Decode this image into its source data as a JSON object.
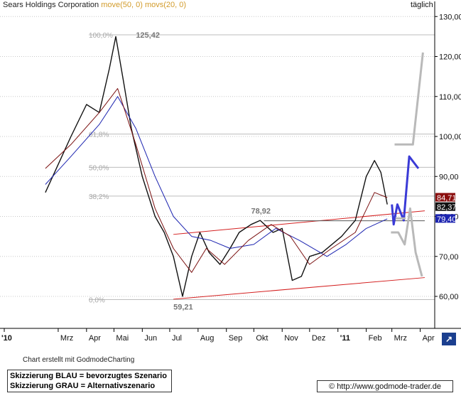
{
  "title": "Sears Holdings Corporation",
  "indicators": "move(50, 0) movs(20, 0)",
  "period": "täglich",
  "credit": "Chart erstellt mit GodmodeCharting",
  "legend": [
    "Skizzierung BLAU = bevorzugtes Szenario",
    "Skizzierung GRAU = Alternativszenario"
  ],
  "url": "© http://www.godmode-trader.de",
  "colors": {
    "price": "#111111",
    "ma50": "#1c24b0",
    "ma20": "#7a1010",
    "trend": "#d42020",
    "blue_scenario": "#3a3ad6",
    "grey_scenario": "#b9b9b9",
    "grid": "#c8c8c8"
  },
  "chart_data": {
    "type": "line",
    "ylim": [
      52,
      132
    ],
    "y_ticks": [
      60,
      70,
      80,
      90,
      100,
      110,
      120,
      130
    ],
    "y_tick_labels": [
      "60,00",
      "70,00",
      "80,00",
      "90,00",
      "100,00",
      "110,00",
      "120,00",
      "130,00"
    ],
    "x_ticks": [
      "'10",
      "Mrz",
      "Apr",
      "Mai",
      "Jun",
      "Jul",
      "Aug",
      "Sep",
      "Okt",
      "Nov",
      "Dez",
      "'11",
      "Feb",
      "Mrz",
      "Apr"
    ],
    "fib_levels": [
      {
        "label": "100,0%",
        "value": 125.42
      },
      {
        "label": "61,8%",
        "value": 100.6
      },
      {
        "label": "50,0%",
        "value": 92.3
      },
      {
        "label": "38,2%",
        "value": 85.1
      },
      {
        "label": "0,0%",
        "value": 59.21
      }
    ],
    "annotations": [
      {
        "text": "125,42",
        "value": 125.42
      },
      {
        "text": "78,92",
        "value": 78.92
      },
      {
        "text": "59,21",
        "value": 59.21
      }
    ],
    "price_labels": [
      {
        "text": "84,71",
        "value": 84.71,
        "color": "#8b0e0e"
      },
      {
        "text": "82,37",
        "value": 82.37,
        "color": "#111111"
      },
      {
        "text": "79,40",
        "value": 79.4,
        "color": "#1c24b0"
      }
    ],
    "series": [
      {
        "name": "Sears Holdings Corporation",
        "color": "#111111",
        "x": [
          "2010-02-15",
          "2010-03-01",
          "2010-03-15",
          "2010-04-01",
          "2010-04-15",
          "2010-04-26",
          "2010-05-03",
          "2010-05-12",
          "2010-05-20",
          "2010-06-01",
          "2010-06-15",
          "2010-06-25",
          "2010-07-05",
          "2010-07-15",
          "2010-07-25",
          "2010-08-03",
          "2010-08-13",
          "2010-08-25",
          "2010-09-05",
          "2010-09-15",
          "2010-09-28",
          "2010-10-08",
          "2010-10-22",
          "2010-11-01",
          "2010-11-12",
          "2010-11-22",
          "2010-12-01",
          "2010-12-15",
          "2011-01-05",
          "2011-01-20",
          "2011-02-01",
          "2011-02-10",
          "2011-02-17",
          "2011-02-24"
        ],
        "y": [
          86,
          93,
          100,
          108,
          106,
          117,
          125,
          113,
          102,
          90,
          80,
          76,
          70,
          60,
          70,
          76,
          71,
          68,
          72,
          76,
          78,
          79,
          76,
          77,
          64,
          65,
          70,
          71,
          75,
          79,
          90,
          94,
          91,
          83
        ]
      },
      {
        "name": "move(50, 0)",
        "color": "#1c24b0",
        "x": [
          "2010-02-15",
          "2010-03-15",
          "2010-04-15",
          "2010-05-05",
          "2010-05-25",
          "2010-06-15",
          "2010-07-05",
          "2010-07-25",
          "2010-08-15",
          "2010-09-05",
          "2010-10-01",
          "2010-10-25",
          "2010-11-20",
          "2010-12-20",
          "2011-01-10",
          "2011-02-01",
          "2011-02-24"
        ],
        "y": [
          88,
          95,
          103,
          110,
          102,
          90,
          80,
          75,
          74,
          72,
          73,
          77,
          74,
          70,
          73,
          77,
          79.4
        ]
      },
      {
        "name": "movs(20, 0)",
        "color": "#7a1010",
        "x": [
          "2010-02-15",
          "2010-03-15",
          "2010-04-15",
          "2010-05-05",
          "2010-05-25",
          "2010-06-15",
          "2010-07-05",
          "2010-07-25",
          "2010-08-10",
          "2010-08-30",
          "2010-09-25",
          "2010-10-20",
          "2010-11-10",
          "2010-12-01",
          "2010-12-25",
          "2011-01-20",
          "2011-02-10",
          "2011-02-24"
        ],
        "y": [
          92,
          98,
          106,
          112,
          98,
          82,
          72,
          66,
          72,
          68,
          74,
          78,
          75,
          68,
          72,
          76,
          86,
          84.71
        ]
      }
    ],
    "trendlines": [
      {
        "x": [
          "2010-07-05",
          "2011-04-06"
        ],
        "y": [
          59.3,
          64.7
        ]
      },
      {
        "x": [
          "2010-07-05",
          "2011-04-06"
        ],
        "y": [
          75.5,
          81.4
        ]
      },
      {
        "x": [
          "2010-10-12",
          "2011-04-06"
        ],
        "y": [
          78.92,
          78.92
        ]
      }
    ],
    "scenario_blue": {
      "x": [
        "2011-03-01",
        "2011-03-03",
        "2011-03-07",
        "2011-03-14",
        "2011-03-20",
        "2011-03-30"
      ],
      "y": [
        83,
        78,
        83,
        79,
        95,
        92
      ]
    },
    "scenario_grey": [
      {
        "x": [
          "2011-02-28",
          "2011-03-08",
          "2011-03-15",
          "2011-03-21",
          "2011-03-27",
          "2011-04-03"
        ],
        "y": [
          76,
          76,
          73,
          82,
          71,
          65
        ]
      },
      {
        "x": [
          "2011-03-04",
          "2011-03-14",
          "2011-03-24",
          "2011-04-04"
        ],
        "y": [
          98,
          98,
          98,
          121
        ]
      },
      {
        "x": [
          "2011-03-05",
          "2011-03-16"
        ],
        "y": [
          79.5,
          79.5
        ]
      }
    ]
  }
}
